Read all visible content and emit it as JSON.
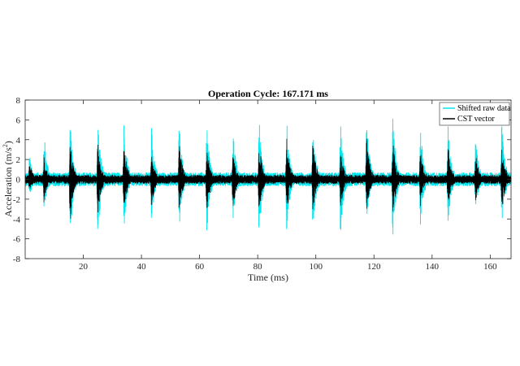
{
  "chart_data": {
    "type": "line",
    "title": "Operation Cycle: 167.171 ms",
    "xlabel": "Time (ms)",
    "ylabel_main": "Acceleration (m/s",
    "ylabel_sup": "2",
    "ylabel_tail": ")",
    "xlim": [
      0,
      167.171
    ],
    "ylim": [
      -8,
      8
    ],
    "xticks": [
      20,
      40,
      60,
      80,
      100,
      120,
      140,
      160
    ],
    "yticks": [
      -8,
      -6,
      -4,
      -2,
      0,
      2,
      4,
      6,
      8
    ],
    "grid": false,
    "legend_position": "top-right",
    "series": [
      {
        "name": "Shifted raw data",
        "color": "#00e5ee",
        "baseline_amplitude": 0.7,
        "impulses": [
          {
            "t": 1.5,
            "pos": 2.6,
            "neg": -2.0
          },
          {
            "t": 6.5,
            "pos": 4.9,
            "neg": -3.5
          },
          {
            "t": 15.5,
            "pos": 5.8,
            "neg": -5.9
          },
          {
            "t": 25.0,
            "pos": 6.2,
            "neg": -6.0
          },
          {
            "t": 34.0,
            "pos": 5.9,
            "neg": -5.2
          },
          {
            "t": 43.5,
            "pos": 5.4,
            "neg": -4.3
          },
          {
            "t": 53.0,
            "pos": 5.8,
            "neg": -5.1
          },
          {
            "t": 62.5,
            "pos": 5.6,
            "neg": -5.9
          },
          {
            "t": 71.5,
            "pos": 5.4,
            "neg": -4.6
          },
          {
            "t": 80.5,
            "pos": 6.3,
            "neg": -6.0
          },
          {
            "t": 90.0,
            "pos": 5.9,
            "neg": -5.6
          },
          {
            "t": 99.0,
            "pos": 5.6,
            "neg": -5.2
          },
          {
            "t": 108.5,
            "pos": 5.8,
            "neg": -5.7
          },
          {
            "t": 117.5,
            "pos": 6.1,
            "neg": -4.3
          },
          {
            "t": 126.5,
            "pos": 6.3,
            "neg": -6.0
          },
          {
            "t": 136.0,
            "pos": 5.5,
            "neg": -5.0
          },
          {
            "t": 145.5,
            "pos": 5.6,
            "neg": -4.6
          },
          {
            "t": 155.0,
            "pos": 4.7,
            "neg": -3.2
          },
          {
            "t": 164.0,
            "pos": 5.8,
            "neg": -4.9
          }
        ]
      },
      {
        "name": "CST vector",
        "color": "#000000",
        "baseline_amplitude": 0.45,
        "impulses": [
          {
            "t": 1.5,
            "pos": 1.8,
            "neg": -1.5
          },
          {
            "t": 6.5,
            "pos": 2.3,
            "neg": -2.4
          },
          {
            "t": 15.5,
            "pos": 4.1,
            "neg": -4.6
          },
          {
            "t": 25.0,
            "pos": 3.6,
            "neg": -3.8
          },
          {
            "t": 34.0,
            "pos": 3.7,
            "neg": -3.3
          },
          {
            "t": 43.5,
            "pos": 2.7,
            "neg": -2.9
          },
          {
            "t": 53.0,
            "pos": 3.9,
            "neg": -3.6
          },
          {
            "t": 62.5,
            "pos": 3.6,
            "neg": -3.6
          },
          {
            "t": 71.5,
            "pos": 2.7,
            "neg": -3.2
          },
          {
            "t": 80.5,
            "pos": 4.0,
            "neg": -3.6
          },
          {
            "t": 90.0,
            "pos": 4.2,
            "neg": -3.6
          },
          {
            "t": 99.0,
            "pos": 3.9,
            "neg": -3.3
          },
          {
            "t": 108.5,
            "pos": 3.0,
            "neg": -3.2
          },
          {
            "t": 117.5,
            "pos": 4.3,
            "neg": -3.4
          },
          {
            "t": 126.5,
            "pos": 4.0,
            "neg": -3.6
          },
          {
            "t": 136.0,
            "pos": 3.4,
            "neg": -2.9
          },
          {
            "t": 145.5,
            "pos": 3.6,
            "neg": -3.0
          },
          {
            "t": 155.0,
            "pos": 2.6,
            "neg": -2.3
          },
          {
            "t": 164.0,
            "pos": 3.8,
            "neg": -3.3
          }
        ]
      }
    ]
  }
}
